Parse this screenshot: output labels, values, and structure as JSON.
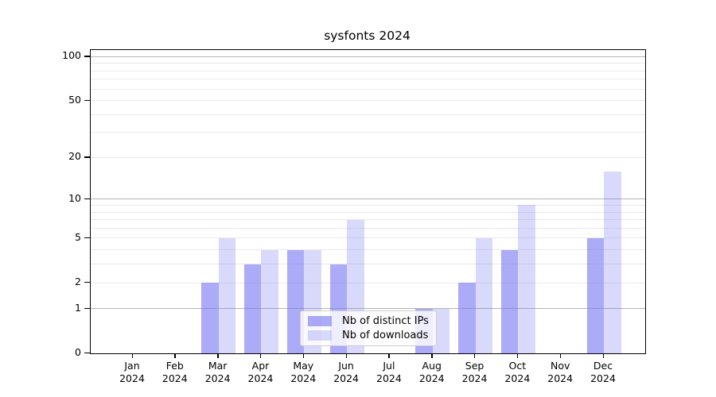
{
  "figure": {
    "title": "sysfonts 2024"
  },
  "legend": {
    "items": [
      {
        "label": "Nb of distinct IPs"
      },
      {
        "label": "Nb of downloads"
      }
    ]
  },
  "chart_data": {
    "type": "bar",
    "title": "sysfonts 2024",
    "categories": [
      {
        "month": "Jan",
        "year": "2024"
      },
      {
        "month": "Feb",
        "year": "2024"
      },
      {
        "month": "Mar",
        "year": "2024"
      },
      {
        "month": "Apr",
        "year": "2024"
      },
      {
        "month": "May",
        "year": "2024"
      },
      {
        "month": "Jun",
        "year": "2024"
      },
      {
        "month": "Jul",
        "year": "2024"
      },
      {
        "month": "Aug",
        "year": "2024"
      },
      {
        "month": "Sep",
        "year": "2024"
      },
      {
        "month": "Oct",
        "year": "2024"
      },
      {
        "month": "Nov",
        "year": "2024"
      },
      {
        "month": "Dec",
        "year": "2024"
      }
    ],
    "series": [
      {
        "key": "ips",
        "name": "Nb of distinct IPs",
        "color": "rgba(120,120,242,0.62)",
        "values": [
          0,
          0,
          2,
          3,
          4,
          3,
          0,
          1,
          2,
          4,
          0,
          5
        ]
      },
      {
        "key": "downloads",
        "name": "Nb of downloads",
        "color": "rgba(120,120,242,0.28)",
        "values": [
          0,
          0,
          5,
          4,
          4,
          7,
          0,
          1,
          5,
          9,
          0,
          16
        ]
      }
    ],
    "y_axis": {
      "scale": "log1p",
      "tick_values": [
        0,
        1,
        2,
        5,
        10,
        20,
        50,
        100
      ],
      "major_gridlines": [
        1,
        10,
        100
      ],
      "minor_gridlines": [
        2,
        3,
        4,
        5,
        6,
        7,
        8,
        9,
        20,
        30,
        40,
        50,
        60,
        70,
        80,
        90
      ],
      "range": [
        0,
        114
      ]
    },
    "grid": true,
    "legend_position": "bottom-center",
    "colors": {
      "axis": "#000000",
      "grid_major": "#b4b4b4",
      "grid_minor": "#e9e9e9",
      "background": "#ffffff"
    }
  }
}
